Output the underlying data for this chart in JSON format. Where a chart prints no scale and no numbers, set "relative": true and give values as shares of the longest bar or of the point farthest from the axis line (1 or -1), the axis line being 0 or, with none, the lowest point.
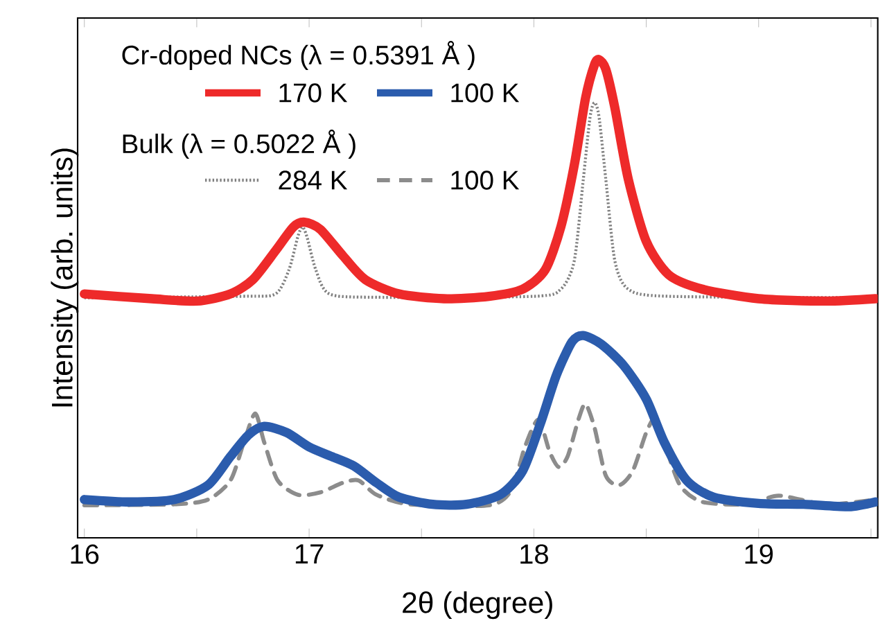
{
  "chart_data": {
    "type": "line",
    "relative": true,
    "xlabel": "2θ (degree)",
    "ylabel": "Intensity (arb. units)",
    "xlim": [
      15.97,
      19.53
    ],
    "xticks": [
      16,
      {
        "value": 16.5,
        "label": null
      },
      17,
      {
        "value": 17.5,
        "label": null
      },
      18,
      {
        "value": 18.5,
        "label": null
      },
      19,
      {
        "value": 19.5,
        "label": null
      }
    ],
    "tick_labels": "x",
    "grid": false,
    "legend": "top left",
    "marker": "none",
    "annotations": [
      "Cr-doped NCs (λ = 0.5391 Å )",
      "Bulk (λ = 0.5022 Å )"
    ],
    "series": [
      {
        "name": "170 K",
        "color": "#ee2a2a",
        "line_style": "solid",
        "x": [
          16.0,
          16.3,
          16.5,
          16.65,
          16.75,
          16.85,
          16.93,
          16.98,
          17.05,
          17.15,
          17.25,
          17.4,
          17.6,
          17.8,
          17.95,
          18.05,
          18.12,
          18.18,
          18.23,
          18.27,
          18.29,
          18.32,
          18.36,
          18.42,
          18.5,
          18.6,
          18.75,
          19.0,
          19.3,
          19.52
        ],
        "values": [
          0.51,
          0.5,
          0.495,
          0.51,
          0.54,
          0.6,
          0.65,
          0.66,
          0.645,
          0.59,
          0.54,
          0.51,
          0.5,
          0.505,
          0.52,
          0.56,
          0.65,
          0.78,
          0.92,
          0.99,
          1.0,
          0.98,
          0.9,
          0.75,
          0.62,
          0.55,
          0.52,
          0.5,
          0.495,
          0.5
        ]
      },
      {
        "name": "100 K",
        "color": "#2b5cad",
        "line_style": "solid",
        "x": [
          16.0,
          16.2,
          16.4,
          16.55,
          16.65,
          16.73,
          16.8,
          16.9,
          17.0,
          17.1,
          17.2,
          17.3,
          17.4,
          17.55,
          17.7,
          17.85,
          17.95,
          18.03,
          18.1,
          18.17,
          18.22,
          18.3,
          18.4,
          18.5,
          18.58,
          18.68,
          18.8,
          19.0,
          19.2,
          19.4,
          19.52
        ],
        "values": [
          0.08,
          0.075,
          0.08,
          0.11,
          0.17,
          0.215,
          0.233,
          0.22,
          0.19,
          0.17,
          0.15,
          0.115,
          0.085,
          0.07,
          0.07,
          0.09,
          0.14,
          0.24,
          0.34,
          0.41,
          0.423,
          0.405,
          0.36,
          0.29,
          0.2,
          0.12,
          0.085,
          0.072,
          0.07,
          0.065,
          0.075
        ]
      },
      {
        "name": "284 K",
        "color": "#808080",
        "line_style": "dotted",
        "x": [
          16.0,
          16.7,
          16.85,
          16.91,
          16.95,
          16.97,
          16.99,
          17.03,
          17.09,
          17.3,
          18.0,
          18.12,
          18.18,
          18.22,
          18.25,
          18.27,
          18.29,
          18.32,
          18.36,
          18.42,
          18.6,
          19.52
        ],
        "values": [
          0.502,
          0.505,
          0.51,
          0.56,
          0.63,
          0.65,
          0.63,
          0.56,
          0.51,
          0.503,
          0.505,
          0.52,
          0.58,
          0.75,
          0.88,
          0.91,
          0.88,
          0.75,
          0.58,
          0.52,
          0.505,
          0.502
        ]
      },
      {
        "name": "100 K",
        "color": "#8c8c8c",
        "line_style": "dashed",
        "x": [
          16.0,
          16.4,
          16.55,
          16.65,
          16.71,
          16.76,
          16.8,
          16.86,
          16.95,
          17.05,
          17.15,
          17.22,
          17.3,
          17.45,
          17.8,
          17.9,
          17.96,
          18.02,
          18.07,
          18.11,
          18.15,
          18.2,
          18.23,
          18.27,
          18.32,
          18.38,
          18.44,
          18.5,
          18.54,
          18.58,
          18.65,
          18.75,
          18.95,
          19.09,
          19.3,
          19.52
        ],
        "values": [
          0.068,
          0.07,
          0.08,
          0.12,
          0.2,
          0.26,
          0.2,
          0.12,
          0.09,
          0.095,
          0.115,
          0.12,
          0.09,
          0.07,
          0.068,
          0.1,
          0.19,
          0.247,
          0.18,
          0.148,
          0.17,
          0.25,
          0.28,
          0.23,
          0.13,
          0.11,
          0.14,
          0.22,
          0.25,
          0.2,
          0.11,
          0.075,
          0.07,
          0.088,
          0.07,
          0.08
        ]
      }
    ]
  }
}
